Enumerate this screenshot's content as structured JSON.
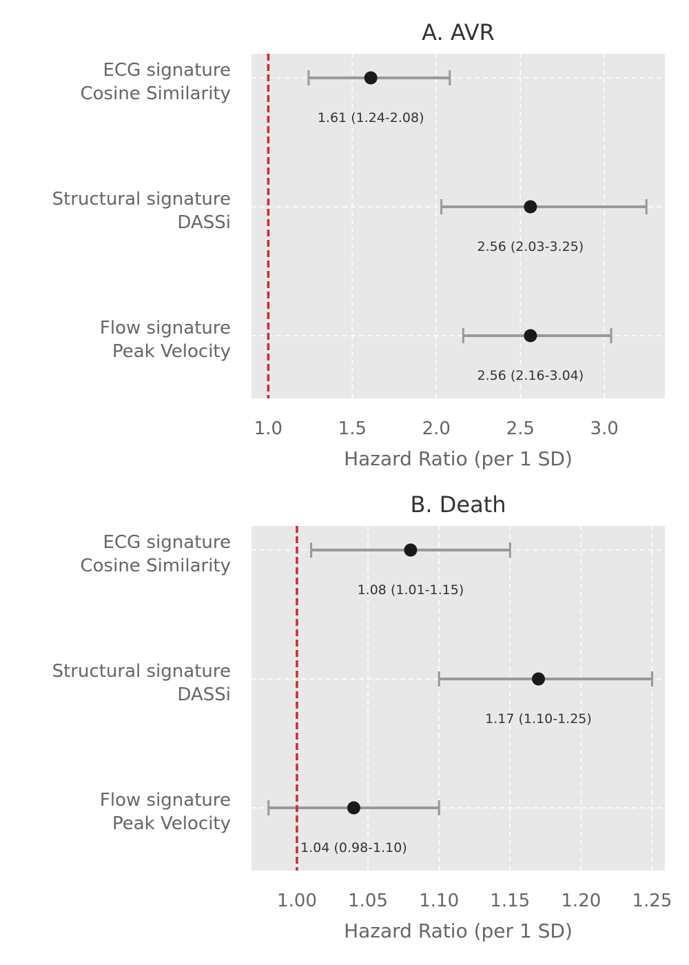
{
  "chart_data": [
    {
      "type": "forest",
      "title": "A. AVR",
      "xlabel": "Hazard Ratio (per 1 SD)",
      "xlim": [
        0.9,
        3.36
      ],
      "xticks": [
        1.0,
        1.5,
        2.0,
        2.5,
        3.0
      ],
      "xtick_labels": [
        "1.0",
        "1.5",
        "2.0",
        "2.5",
        "3.0"
      ],
      "reference_line": 1.0,
      "grid": true,
      "rows": [
        {
          "label1": "ECG signature",
          "label2": "Cosine Similarity",
          "hr": 1.61,
          "lo": 1.24,
          "hi": 2.08,
          "text": "1.61 (1.24-2.08)"
        },
        {
          "label1": "Structural signature",
          "label2": "DASSi",
          "hr": 2.56,
          "lo": 2.03,
          "hi": 3.25,
          "text": "2.56 (2.03-3.25)"
        },
        {
          "label1": "Flow signature",
          "label2": "Peak Velocity",
          "hr": 2.56,
          "lo": 2.16,
          "hi": 3.04,
          "text": "2.56 (2.16-3.04)"
        }
      ]
    },
    {
      "type": "forest",
      "title": "B. Death",
      "xlabel": "Hazard Ratio (per 1 SD)",
      "xlim": [
        0.968,
        1.259
      ],
      "xticks": [
        1.0,
        1.05,
        1.1,
        1.15,
        1.2,
        1.25
      ],
      "xtick_labels": [
        "1.00",
        "1.05",
        "1.10",
        "1.15",
        "1.20",
        "1.25"
      ],
      "reference_line": 1.0,
      "grid": true,
      "rows": [
        {
          "label1": "ECG signature",
          "label2": "Cosine Similarity",
          "hr": 1.08,
          "lo": 1.01,
          "hi": 1.15,
          "text": "1.08 (1.01-1.15)"
        },
        {
          "label1": "Structural signature",
          "label2": "DASSi",
          "hr": 1.17,
          "lo": 1.1,
          "hi": 1.25,
          "text": "1.17 (1.10-1.25)"
        },
        {
          "label1": "Flow signature",
          "label2": "Peak Velocity",
          "hr": 1.04,
          "lo": 0.98,
          "hi": 1.1,
          "text": "1.04 (0.98-1.10)"
        }
      ]
    }
  ],
  "colors": {
    "background": "#e8e8e8",
    "grid": "#ffffff",
    "errorbar": "#999999",
    "point": "#1a1a1a",
    "reference": "#d62728"
  }
}
